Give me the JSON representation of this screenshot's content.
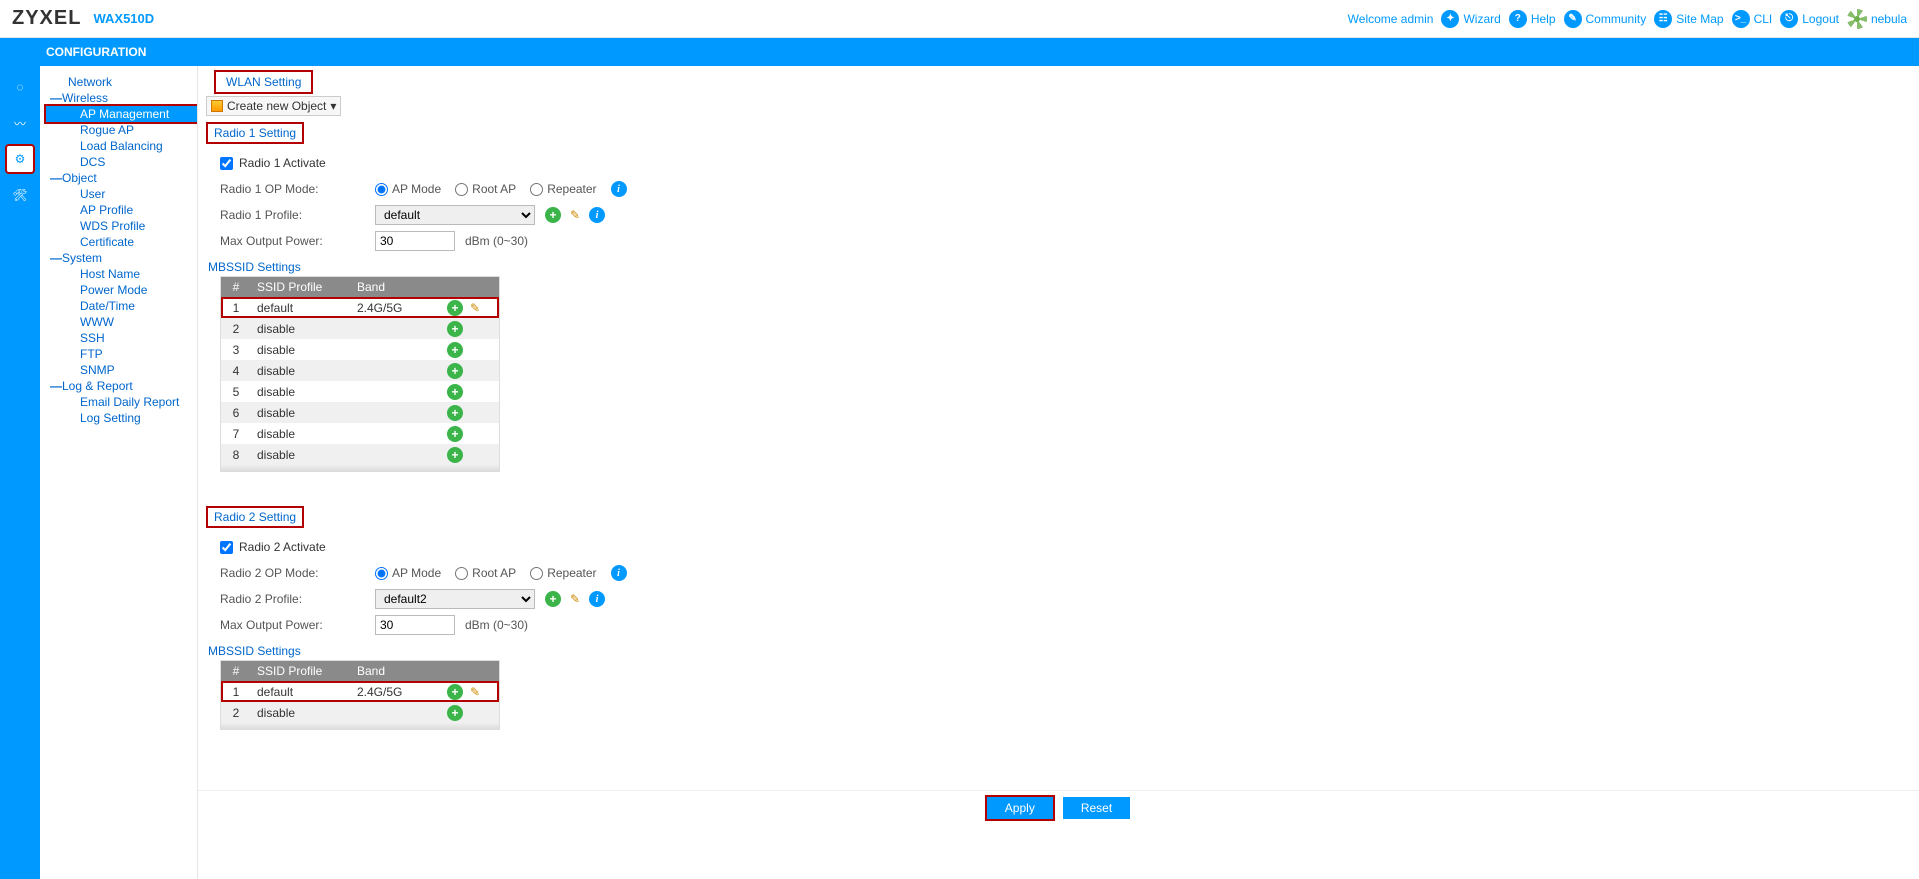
{
  "header": {
    "brand": "ZYXEL",
    "model": "WAX510D",
    "welcome": "Welcome admin",
    "links": {
      "wizard": "Wizard",
      "help": "Help",
      "community": "Community",
      "sitemap": "Site Map",
      "cli": "CLI",
      "logout": "Logout",
      "nebula": "nebula"
    }
  },
  "blueBar": {
    "title": "CONFIGURATION"
  },
  "nav": {
    "network": "Network",
    "wireless": "Wireless",
    "ap_management": "AP Management",
    "rogue_ap": "Rogue AP",
    "load_balancing": "Load Balancing",
    "dcs": "DCS",
    "object": "Object",
    "user": "User",
    "ap_profile": "AP Profile",
    "wds_profile": "WDS Profile",
    "certificate": "Certificate",
    "system": "System",
    "host_name": "Host Name",
    "power_mode": "Power Mode",
    "date_time": "Date/Time",
    "www": "WWW",
    "ssh": "SSH",
    "ftp": "FTP",
    "snmp": "SNMP",
    "log_report": "Log & Report",
    "email_daily_report": "Email Daily Report",
    "log_setting": "Log Setting"
  },
  "page": {
    "tab": "WLAN Setting",
    "create_new_object": "Create new Object",
    "radio1": {
      "title": "Radio 1 Setting",
      "activate_label": "Radio 1 Activate",
      "activate_checked": true,
      "op_mode_label": "Radio 1 OP Mode:",
      "op_modes": {
        "ap": "AP Mode",
        "root": "Root AP",
        "repeater": "Repeater"
      },
      "op_mode_selected": "ap",
      "profile_label": "Radio 1 Profile:",
      "profile_value": "default",
      "max_power_label": "Max Output Power:",
      "max_power_value": "30",
      "max_power_unit": "dBm (0~30)",
      "mbssid_title": "MBSSID Settings",
      "table": {
        "headers": {
          "n": "#",
          "ssid": "SSID Profile",
          "band": "Band"
        },
        "rows": [
          {
            "n": "1",
            "ssid": "default",
            "band": "2.4G/5G",
            "edit": true,
            "highlight": true
          },
          {
            "n": "2",
            "ssid": "disable",
            "band": "",
            "edit": false,
            "highlight": false
          },
          {
            "n": "3",
            "ssid": "disable",
            "band": "",
            "edit": false,
            "highlight": false
          },
          {
            "n": "4",
            "ssid": "disable",
            "band": "",
            "edit": false,
            "highlight": false
          },
          {
            "n": "5",
            "ssid": "disable",
            "band": "",
            "edit": false,
            "highlight": false
          },
          {
            "n": "6",
            "ssid": "disable",
            "band": "",
            "edit": false,
            "highlight": false
          },
          {
            "n": "7",
            "ssid": "disable",
            "band": "",
            "edit": false,
            "highlight": false
          },
          {
            "n": "8",
            "ssid": "disable",
            "band": "",
            "edit": false,
            "highlight": false
          }
        ]
      }
    },
    "radio2": {
      "title": "Radio 2 Setting",
      "activate_label": "Radio 2 Activate",
      "activate_checked": true,
      "op_mode_label": "Radio 2 OP Mode:",
      "op_modes": {
        "ap": "AP Mode",
        "root": "Root AP",
        "repeater": "Repeater"
      },
      "op_mode_selected": "ap",
      "profile_label": "Radio 2 Profile:",
      "profile_value": "default2",
      "max_power_label": "Max Output Power:",
      "max_power_value": "30",
      "max_power_unit": "dBm (0~30)",
      "mbssid_title": "MBSSID Settings",
      "table": {
        "headers": {
          "n": "#",
          "ssid": "SSID Profile",
          "band": "Band"
        },
        "rows": [
          {
            "n": "1",
            "ssid": "default",
            "band": "2.4G/5G",
            "edit": true,
            "highlight": true
          },
          {
            "n": "2",
            "ssid": "disable",
            "band": "",
            "edit": false,
            "highlight": false
          }
        ]
      }
    },
    "buttons": {
      "apply": "Apply",
      "reset": "Reset"
    }
  },
  "colors": {
    "accent": "#0099ff",
    "highlight_border": "#b30000",
    "add_icon": "#3bb44a",
    "edit_icon": "#cc8800",
    "table_header_bg": "#8a8a8a",
    "link": "#0066cc"
  }
}
